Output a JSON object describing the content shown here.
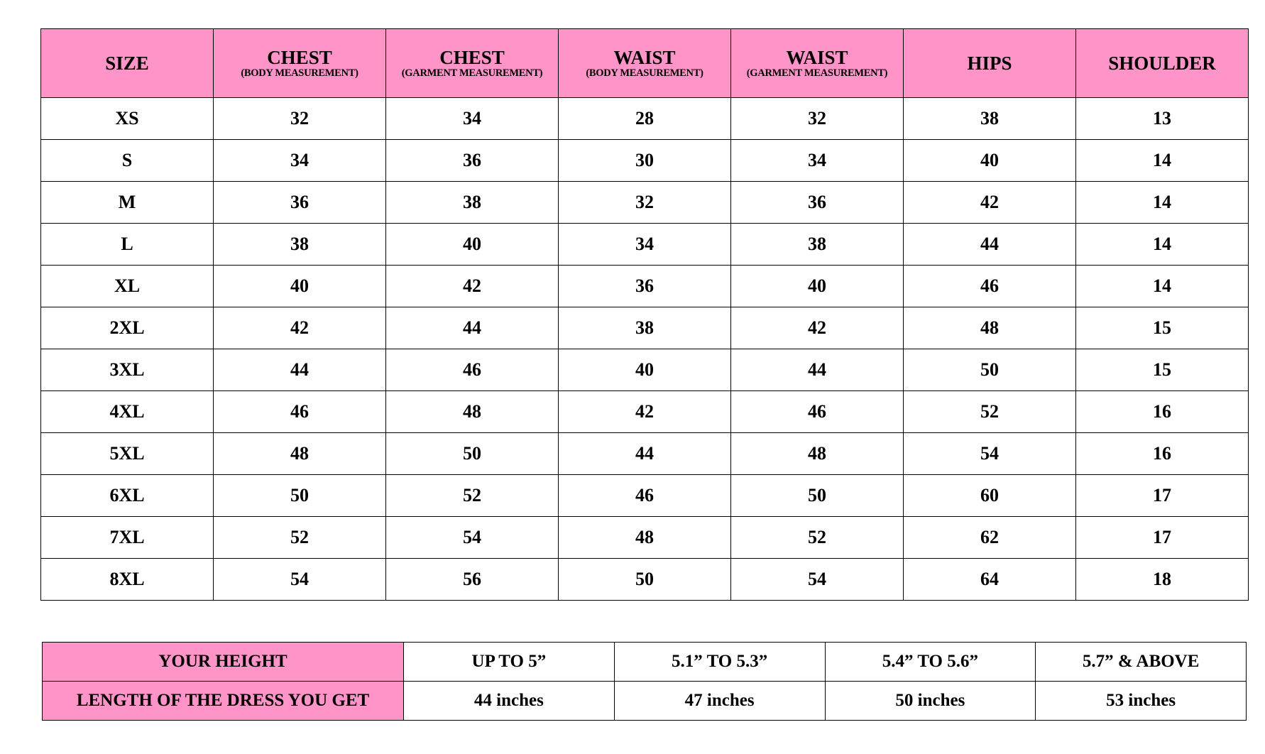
{
  "colors": {
    "header_bg": "#ff94c8",
    "text": "#000000",
    "border": "#000000"
  },
  "size_chart": {
    "columns": [
      {
        "title": "SIZE",
        "sub": ""
      },
      {
        "title": "CHEST",
        "sub": "(BODY MEASUREMENT)"
      },
      {
        "title": "CHEST",
        "sub": "(GARMENT MEASUREMENT)"
      },
      {
        "title": "WAIST",
        "sub": "(BODY MEASUREMENT)"
      },
      {
        "title": "WAIST",
        "sub": "(GARMENT MEASUREMENT)"
      },
      {
        "title": "HIPS",
        "sub": ""
      },
      {
        "title": "SHOULDER",
        "sub": ""
      }
    ],
    "rows": [
      [
        "XS",
        "32",
        "34",
        "28",
        "32",
        "38",
        "13"
      ],
      [
        "S",
        "34",
        "36",
        "30",
        "34",
        "40",
        "14"
      ],
      [
        "M",
        "36",
        "38",
        "32",
        "36",
        "42",
        "14"
      ],
      [
        "L",
        "38",
        "40",
        "34",
        "38",
        "44",
        "14"
      ],
      [
        "XL",
        "40",
        "42",
        "36",
        "40",
        "46",
        "14"
      ],
      [
        "2XL",
        "42",
        "44",
        "38",
        "42",
        "48",
        "15"
      ],
      [
        "3XL",
        "44",
        "46",
        "40",
        "44",
        "50",
        "15"
      ],
      [
        "4XL",
        "46",
        "48",
        "42",
        "46",
        "52",
        "16"
      ],
      [
        "5XL",
        "48",
        "50",
        "44",
        "48",
        "54",
        "16"
      ],
      [
        "6XL",
        "50",
        "52",
        "46",
        "50",
        "60",
        "17"
      ],
      [
        "7XL",
        "52",
        "54",
        "48",
        "52",
        "62",
        "17"
      ],
      [
        "8XL",
        "54",
        "56",
        "50",
        "54",
        "64",
        "18"
      ]
    ]
  },
  "length_chart": {
    "rows": [
      {
        "label": "YOUR HEIGHT",
        "values": [
          "UP TO 5”",
          "5.1” TO 5.3”",
          "5.4” TO 5.6”",
          "5.7” & ABOVE"
        ]
      },
      {
        "label": "LENGTH OF THE DRESS YOU GET",
        "values": [
          "44 inches",
          "47 inches",
          "50 inches",
          "53 inches"
        ]
      }
    ]
  }
}
